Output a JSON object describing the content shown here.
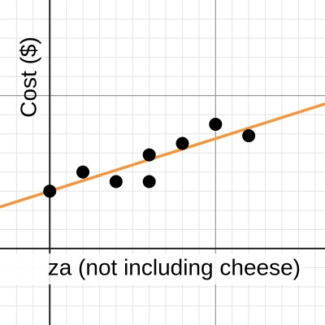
{
  "chart_data": {
    "type": "scatter",
    "y_label": "Cost ($)",
    "x_label": "za (not including cheese)",
    "x": [
      0,
      2,
      4,
      6,
      6,
      8,
      10,
      12
    ],
    "values": [
      3,
      4,
      3.5,
      4.9,
      3.5,
      5.5,
      6.5,
      5.9
    ],
    "color": "#000000",
    "trendline": {
      "slope": 0.275,
      "intercept": 3,
      "color": "#f7953a"
    },
    "xlim": [
      -3,
      16.6
    ],
    "ylim": [
      -4,
      13
    ],
    "xticks": [
      -2,
      -1,
      1,
      2,
      3,
      4,
      5,
      6,
      7,
      8,
      9,
      10,
      11,
      12,
      13,
      14,
      15,
      16
    ],
    "yticks": [
      -3,
      -2,
      -1,
      1,
      2,
      3,
      4,
      5,
      6,
      7,
      8,
      9,
      10,
      11,
      12
    ],
    "xmajor": [
      10
    ],
    "ymajor": [
      8
    ],
    "grid": true
  }
}
